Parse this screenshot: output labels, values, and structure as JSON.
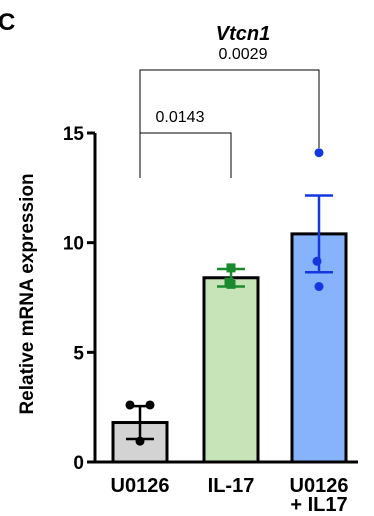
{
  "panel_label": "C",
  "chart_data": {
    "type": "bar",
    "title": "Vtcn1",
    "xlabel": "",
    "ylabel": "Relative mRNA expression",
    "ylim": [
      0,
      15
    ],
    "yticks": [
      0,
      5,
      10,
      15
    ],
    "yticklabels": [
      "0",
      "5",
      "10",
      "15"
    ],
    "categories": [
      "U0126",
      "IL-17",
      "U0126\n+ IL17"
    ],
    "category_lines": [
      [
        "U0126"
      ],
      [
        "IL-17"
      ],
      [
        "U0126",
        "+ IL17"
      ]
    ],
    "values": [
      1.8,
      8.4,
      10.4
    ],
    "errors": [
      0.75,
      0.4,
      1.75
    ],
    "points": [
      [
        2.6,
        2.6,
        0.95
      ],
      [
        8.85,
        8.2,
        8.1
      ],
      [
        14.1,
        9.15,
        8.0
      ]
    ],
    "bar_fill_colors": [
      "#d3d3d3",
      "#c6e4b8",
      "#86b3fb"
    ],
    "bar_edge_color": "#000000",
    "point_colors": [
      "#000000",
      "#1a8a2e",
      "#1537e0"
    ],
    "comparisons": [
      {
        "from": 0,
        "to": 2,
        "label": "0.0029"
      },
      {
        "from": 0,
        "to": 1,
        "label": "0.0143"
      }
    ]
  }
}
